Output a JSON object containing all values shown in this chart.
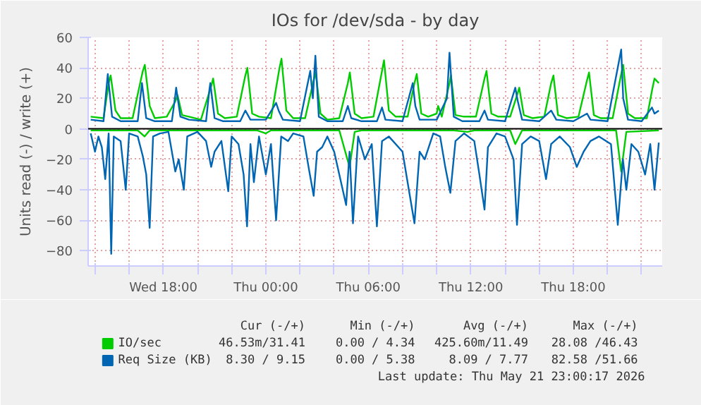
{
  "chart_data": {
    "type": "line",
    "title": "IOs for /dev/sda - by day",
    "ylabel": "Units read (-) / write (+)",
    "xlim": [
      "2026-05-20T13:36",
      "2026-05-21T23:12"
    ],
    "ylim": [
      -90,
      60
    ],
    "xticks": [
      {
        "value": "2026-05-20T14:00",
        "label": null
      },
      {
        "value": "2026-05-20T16:00",
        "label": null
      },
      {
        "value": "2026-05-20T18:00",
        "label": "Wed 18:00"
      },
      {
        "value": "2026-05-20T20:00",
        "label": null
      },
      {
        "value": "2026-05-20T22:00",
        "label": null
      },
      {
        "value": "2026-05-21T00:00",
        "label": "Thu 00:00"
      },
      {
        "value": "2026-05-21T02:00",
        "label": null
      },
      {
        "value": "2026-05-21T04:00",
        "label": null
      },
      {
        "value": "2026-05-21T06:00",
        "label": "Thu 06:00"
      },
      {
        "value": "2026-05-21T08:00",
        "label": null
      },
      {
        "value": "2026-05-21T10:00",
        "label": null
      },
      {
        "value": "2026-05-21T12:00",
        "label": "Thu 12:00"
      },
      {
        "value": "2026-05-21T14:00",
        "label": null
      },
      {
        "value": "2026-05-21T16:00",
        "label": null
      },
      {
        "value": "2026-05-21T18:00",
        "label": "Thu 18:00"
      },
      {
        "value": "2026-05-21T20:00",
        "label": null
      },
      {
        "value": "2026-05-21T22:00",
        "label": null
      }
    ],
    "yticks": [
      -80,
      -60,
      -40,
      -20,
      0,
      20,
      40,
      60
    ],
    "grid": true,
    "legend": "bottom",
    "marker": "none",
    "line_style": "solid",
    "ref_lines": [
      {
        "axis": "y",
        "value": 0,
        "color": "#000000"
      }
    ],
    "series": [
      {
        "name": "IO/sec",
        "color": "#00cc00",
        "x": [
          "2026-05-20T13:45",
          "2026-05-20T14:30",
          "2026-05-20T14:48",
          "2026-05-20T14:55",
          "2026-05-20T15:12",
          "2026-05-20T15:30",
          "2026-05-20T16:12",
          "2026-05-20T16:48",
          "2026-05-20T16:55",
          "2026-05-20T17:12",
          "2026-05-20T17:30",
          "2026-05-20T18:12",
          "2026-05-20T18:42",
          "2026-05-20T18:50",
          "2026-05-20T19:06",
          "2026-05-20T19:30",
          "2026-05-20T20:12",
          "2026-05-20T20:48",
          "2026-05-20T20:55",
          "2026-05-20T21:12",
          "2026-05-20T21:36",
          "2026-05-20T22:18",
          "2026-05-20T22:48",
          "2026-05-20T22:55",
          "2026-05-20T23:12",
          "2026-05-20T23:36",
          "2026-05-21T00:18",
          "2026-05-21T00:48",
          "2026-05-21T00:55",
          "2026-05-21T01:12",
          "2026-05-21T01:36",
          "2026-05-21T02:18",
          "2026-05-21T02:48",
          "2026-05-21T02:55",
          "2026-05-21T03:12",
          "2026-05-21T03:36",
          "2026-05-21T04:18",
          "2026-05-21T04:48",
          "2026-05-21T04:55",
          "2026-05-21T05:12",
          "2026-05-21T05:36",
          "2026-05-21T06:18",
          "2026-05-21T06:48",
          "2026-05-21T06:55",
          "2026-05-21T07:12",
          "2026-05-21T07:36",
          "2026-05-21T08:18",
          "2026-05-21T08:42",
          "2026-05-21T08:50",
          "2026-05-21T09:06",
          "2026-05-21T09:30",
          "2026-05-21T10:00",
          "2026-05-21T10:05",
          "2026-05-21T10:18",
          "2026-05-21T10:45",
          "2026-05-21T10:50",
          "2026-05-21T11:06",
          "2026-05-21T11:36",
          "2026-05-21T12:18",
          "2026-05-21T12:48",
          "2026-05-21T12:55",
          "2026-05-21T13:12",
          "2026-05-21T13:36",
          "2026-05-21T14:18",
          "2026-05-21T14:42",
          "2026-05-21T14:50",
          "2026-05-21T15:06",
          "2026-05-21T15:36",
          "2026-05-21T16:18",
          "2026-05-21T16:42",
          "2026-05-21T16:50",
          "2026-05-21T17:06",
          "2026-05-21T17:36",
          "2026-05-21T18:18",
          "2026-05-21T18:48",
          "2026-05-21T18:55",
          "2026-05-21T19:12",
          "2026-05-21T19:36",
          "2026-05-21T20:18",
          "2026-05-21T20:48",
          "2026-05-21T20:55",
          "2026-05-21T21:12",
          "2026-05-21T21:36",
          "2026-05-21T22:18",
          "2026-05-21T22:36",
          "2026-05-21T22:45",
          "2026-05-21T23:00"
        ],
        "values": [
          8,
          7,
          30,
          35,
          12,
          7,
          7,
          38,
          42,
          15,
          7,
          8,
          18,
          22,
          9,
          8,
          6,
          28,
          33,
          10,
          7,
          8,
          35,
          40,
          10,
          8,
          7,
          40,
          46,
          12,
          7,
          7,
          32,
          37,
          10,
          6,
          7,
          30,
          37,
          10,
          7,
          8,
          38,
          45,
          12,
          8,
          8,
          30,
          36,
          10,
          8,
          10,
          15,
          8,
          30,
          35,
          9,
          8,
          8,
          33,
          38,
          10,
          8,
          8,
          22,
          27,
          9,
          7,
          8,
          30,
          35,
          9,
          7,
          8,
          32,
          37,
          9,
          7,
          7,
          36,
          42,
          10,
          7,
          7,
          25,
          33,
          30
        ]
      },
      {
        "color": "#00cc00",
        "x": [
          "2026-05-20T13:45",
          "2026-05-20T16:30",
          "2026-05-20T16:54",
          "2026-05-20T17:12",
          "2026-05-20T23:30",
          "2026-05-21T00:00",
          "2026-05-21T00:18",
          "2026-05-21T04:18",
          "2026-05-21T04:54",
          "2026-05-21T05:12",
          "2026-05-21T05:36",
          "2026-05-21T11:00",
          "2026-05-21T11:48",
          "2026-05-21T12:12",
          "2026-05-21T14:18",
          "2026-05-21T14:36",
          "2026-05-21T15:00",
          "2026-05-21T20:30",
          "2026-05-21T20:48",
          "2026-05-21T21:06",
          "2026-05-21T23:00"
        ],
        "values": [
          -1,
          -1,
          -5,
          -1,
          -1,
          -3,
          -1,
          -1,
          -25,
          -2,
          -1,
          -1,
          -2,
          -1,
          -1,
          -10,
          -1,
          -1,
          -28,
          -2,
          -1
        ]
      },
      {
        "name": "Req Size (KB)",
        "color": "#0066b3",
        "x": [
          "2026-05-20T13:45",
          "2026-05-20T14:30",
          "2026-05-20T14:42",
          "2026-05-20T14:45",
          "2026-05-20T15:00",
          "2026-05-20T15:30",
          "2026-05-20T16:30",
          "2026-05-20T16:42",
          "2026-05-20T16:45",
          "2026-05-20T17:00",
          "2026-05-20T17:30",
          "2026-05-20T18:30",
          "2026-05-20T18:42",
          "2026-05-20T18:45",
          "2026-05-20T19:00",
          "2026-05-20T19:30",
          "2026-05-20T20:30",
          "2026-05-20T20:42",
          "2026-05-20T20:45",
          "2026-05-20T21:00",
          "2026-05-20T21:30",
          "2026-05-20T22:30",
          "2026-05-20T22:48",
          "2026-05-20T23:06",
          "2026-05-21T00:00",
          "2026-05-21T00:36",
          "2026-05-21T00:45",
          "2026-05-21T01:00",
          "2026-05-21T02:00",
          "2026-05-21T02:36",
          "2026-05-21T02:45",
          "2026-05-21T02:54",
          "2026-05-21T03:06",
          "2026-05-21T03:36",
          "2026-05-21T04:30",
          "2026-05-21T04:48",
          "2026-05-21T05:00",
          "2026-05-21T05:36",
          "2026-05-21T06:30",
          "2026-05-21T06:48",
          "2026-05-21T07:00",
          "2026-05-21T08:00",
          "2026-05-21T08:36",
          "2026-05-21T08:45",
          "2026-05-21T09:00",
          "2026-05-21T10:00",
          "2026-05-21T10:36",
          "2026-05-21T10:45",
          "2026-05-21T11:00",
          "2026-05-21T11:30",
          "2026-05-21T12:30",
          "2026-05-21T12:48",
          "2026-05-21T13:00",
          "2026-05-21T14:00",
          "2026-05-21T14:36",
          "2026-05-21T14:45",
          "2026-05-21T15:00",
          "2026-05-21T16:00",
          "2026-05-21T16:42",
          "2026-05-21T17:00",
          "2026-05-21T18:00",
          "2026-05-21T18:48",
          "2026-05-21T19:00",
          "2026-05-21T20:00",
          "2026-05-21T20:48",
          "2026-05-21T20:55",
          "2026-05-21T21:12",
          "2026-05-21T22:00",
          "2026-05-21T22:36",
          "2026-05-21T22:45",
          "2026-05-21T23:00"
        ],
        "values": [
          6,
          5,
          30,
          36,
          8,
          5,
          5,
          25,
          30,
          7,
          5,
          5,
          22,
          27,
          8,
          6,
          5,
          26,
          30,
          7,
          5,
          5,
          12,
          6,
          6,
          17,
          12,
          6,
          5,
          38,
          20,
          48,
          8,
          5,
          5,
          15,
          7,
          5,
          5,
          14,
          6,
          5,
          30,
          15,
          6,
          6,
          20,
          50,
          8,
          5,
          5,
          12,
          6,
          5,
          27,
          18,
          6,
          5,
          12,
          6,
          5,
          10,
          6,
          5,
          52,
          20,
          6,
          5,
          14,
          10,
          12
        ]
      },
      {
        "color": "#0066b3",
        "x": [
          "2026-05-20T13:45",
          "2026-05-20T14:00",
          "2026-05-20T14:12",
          "2026-05-20T14:24",
          "2026-05-20T14:36",
          "2026-05-20T14:48",
          "2026-05-20T14:57",
          "2026-05-20T15:06",
          "2026-05-20T15:30",
          "2026-05-20T15:48",
          "2026-05-20T16:00",
          "2026-05-20T16:30",
          "2026-05-20T16:48",
          "2026-05-20T17:00",
          "2026-05-20T17:12",
          "2026-05-20T17:24",
          "2026-05-20T17:48",
          "2026-05-20T18:18",
          "2026-05-20T18:42",
          "2026-05-20T18:54",
          "2026-05-20T19:12",
          "2026-05-20T19:24",
          "2026-05-20T20:00",
          "2026-05-20T20:30",
          "2026-05-20T20:48",
          "2026-05-20T21:00",
          "2026-05-20T21:24",
          "2026-05-20T21:48",
          "2026-05-20T22:00",
          "2026-05-20T22:24",
          "2026-05-20T22:42",
          "2026-05-20T22:54",
          "2026-05-20T23:06",
          "2026-05-20T23:18",
          "2026-05-20T23:36",
          "2026-05-21T00:00",
          "2026-05-21T00:18",
          "2026-05-21T00:36",
          "2026-05-21T00:54",
          "2026-05-21T01:18",
          "2026-05-21T01:36",
          "2026-05-21T02:12",
          "2026-05-21T02:30",
          "2026-05-21T02:48",
          "2026-05-21T03:00",
          "2026-05-21T03:18",
          "2026-05-21T03:36",
          "2026-05-21T04:00",
          "2026-05-21T04:42",
          "2026-05-21T04:54",
          "2026-05-21T05:06",
          "2026-05-21T05:24",
          "2026-05-21T05:48",
          "2026-05-21T06:12",
          "2026-05-21T06:30",
          "2026-05-21T06:48",
          "2026-05-21T07:12",
          "2026-05-21T08:00",
          "2026-05-21T08:24",
          "2026-05-21T08:42",
          "2026-05-21T09:00",
          "2026-05-21T09:18",
          "2026-05-21T09:48",
          "2026-05-21T10:12",
          "2026-05-21T10:30",
          "2026-05-21T10:48",
          "2026-05-21T11:06",
          "2026-05-21T11:36",
          "2026-05-21T12:12",
          "2026-05-21T12:30",
          "2026-05-21T12:48",
          "2026-05-21T13:00",
          "2026-05-21T13:30",
          "2026-05-21T14:00",
          "2026-05-21T14:30",
          "2026-05-21T14:42",
          "2026-05-21T15:00",
          "2026-05-21T15:30",
          "2026-05-21T16:00",
          "2026-05-21T16:24",
          "2026-05-21T16:42",
          "2026-05-21T17:12",
          "2026-05-21T17:48",
          "2026-05-21T18:12",
          "2026-05-21T18:36",
          "2026-05-21T19:00",
          "2026-05-21T19:30",
          "2026-05-21T20:12",
          "2026-05-21T20:36",
          "2026-05-21T20:54",
          "2026-05-21T21:06",
          "2026-05-21T21:24",
          "2026-05-21T21:48",
          "2026-05-21T22:12",
          "2026-05-21T22:30",
          "2026-05-21T22:45",
          "2026-05-21T23:00"
        ],
        "values": [
          -3,
          -15,
          -5,
          -12,
          -33,
          -3,
          -82,
          -5,
          -8,
          -40,
          -3,
          -5,
          -18,
          -30,
          -65,
          -5,
          -3,
          -2,
          -28,
          -20,
          -40,
          -5,
          -2,
          -8,
          -25,
          -15,
          -8,
          -41,
          -5,
          -10,
          -30,
          -64,
          -10,
          -35,
          -5,
          -30,
          -10,
          -60,
          -5,
          -8,
          -3,
          -5,
          -25,
          -44,
          -15,
          -12,
          -5,
          -15,
          -50,
          -15,
          -62,
          -5,
          -20,
          -10,
          -64,
          -8,
          -5,
          -15,
          -42,
          -62,
          -15,
          -20,
          -3,
          -5,
          -25,
          -42,
          -8,
          -3,
          -8,
          -30,
          -53,
          -12,
          -3,
          -5,
          -20,
          -63,
          -10,
          -5,
          -8,
          -33,
          -10,
          -5,
          -12,
          -25,
          -15,
          -8,
          -5,
          -10,
          -63,
          -20,
          -40,
          -10,
          -15,
          -30,
          -10,
          -40,
          -9
        ]
      }
    ],
    "annotations": [
      "Cur (-/+)",
      "Min (-/+)",
      "Avg (-/+)",
      "Max (-/+)",
      "46.53m/31.41",
      "0.00 / 4.34",
      "425.60m/11.49",
      "28.08 /46.43",
      "8.30 / 9.15",
      "0.00 / 5.38",
      "8.09 / 7.77",
      "82.58 /51.66",
      "Last update: Thu May 21 23:00:17 2026"
    ]
  }
}
